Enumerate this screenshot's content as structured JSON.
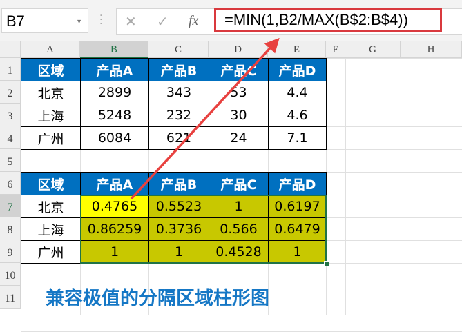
{
  "name_box": "B7",
  "formula_bar": {
    "cancel_icon": "✕",
    "enter_icon": "✓",
    "fx_label": "fx",
    "formula": "=MIN(1,B2/MAX(B$2:B$4))"
  },
  "columns": [
    "A",
    "B",
    "C",
    "D",
    "E",
    "F",
    "G",
    "H"
  ],
  "rows": [
    "1",
    "2",
    "3",
    "4",
    "5",
    "6",
    "7",
    "8",
    "9",
    "10",
    "11"
  ],
  "table1": {
    "headers": [
      "区域",
      "产品A",
      "产品B",
      "产品C",
      "产品D"
    ],
    "rows": [
      [
        "北京",
        "2899",
        "343",
        "53",
        "4.4"
      ],
      [
        "上海",
        "5248",
        "232",
        "30",
        "4.6"
      ],
      [
        "广州",
        "6084",
        "621",
        "24",
        "7.1"
      ]
    ]
  },
  "table2": {
    "headers": [
      "区域",
      "产品A",
      "产品B",
      "产品C",
      "产品D"
    ],
    "rows": [
      [
        "北京",
        "0.4765",
        "0.5523",
        "1",
        "0.6197"
      ],
      [
        "上海",
        "0.86259",
        "0.3736",
        "0.566",
        "0.6479"
      ],
      [
        "广州",
        "1",
        "1",
        "0.4528",
        "1"
      ]
    ]
  },
  "caption": "兼容极值的分隔区域柱形图",
  "colors": {
    "header": "#0070c0",
    "normalized": "#c8c800",
    "active": "#ffff00",
    "arrow": "#e8413f",
    "caption": "#1577c5"
  }
}
